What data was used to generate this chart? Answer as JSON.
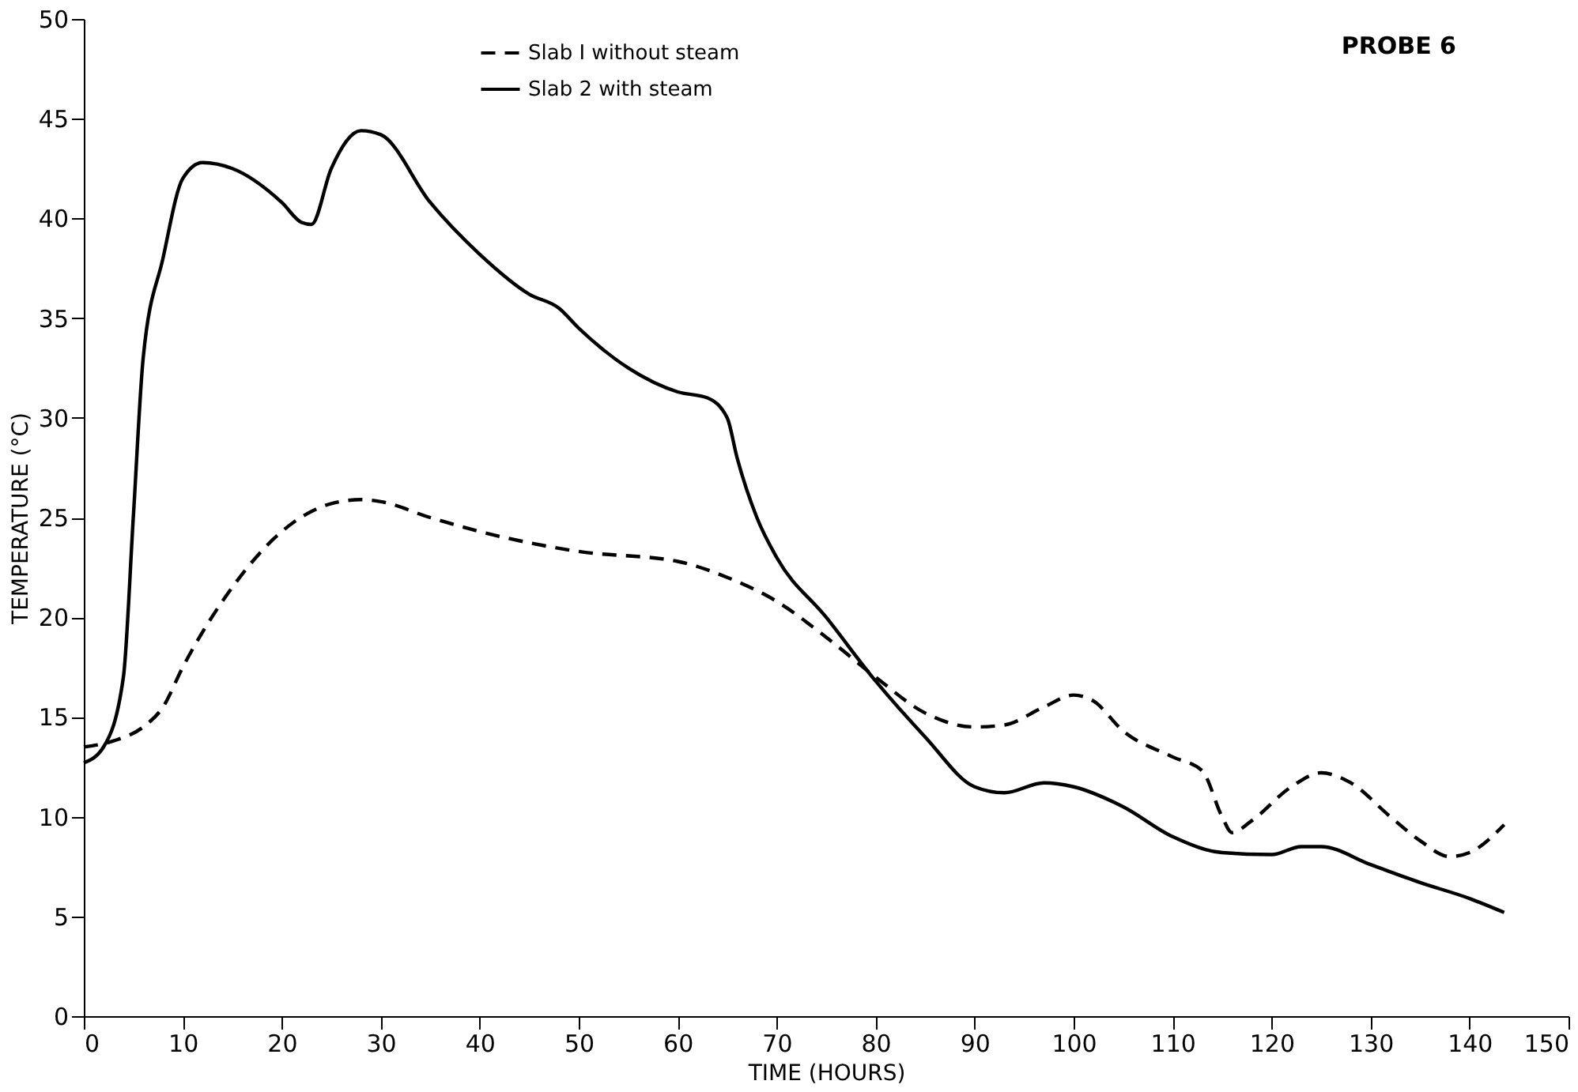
{
  "chart_data": {
    "type": "line",
    "xlabel": "TIME (HOURS)",
    "ylabel": "TEMPERATURE (°C)",
    "annotations": [
      "PROBE 6"
    ],
    "xlim": [
      0,
      150
    ],
    "xticks": [
      0,
      10,
      20,
      30,
      40,
      50,
      60,
      70,
      80,
      90,
      100,
      110,
      120,
      130,
      140,
      150
    ],
    "ylim": [
      0,
      50
    ],
    "yticks": [
      0,
      5,
      10,
      15,
      20,
      25,
      30,
      35,
      40,
      45,
      50
    ],
    "grid": false,
    "legend": "top",
    "marker": "none",
    "series": [
      {
        "name": "Slab I without steam",
        "color": "#000000",
        "line_style": "dashed",
        "x": [
          0,
          3,
          6,
          8,
          10,
          15,
          20,
          25,
          28,
          30,
          35,
          40,
          50,
          60,
          65,
          70,
          75,
          80,
          85,
          90,
          93,
          97,
          100,
          102,
          105,
          110,
          113,
          115,
          116,
          118,
          122,
          125,
          128,
          132,
          135,
          138,
          140,
          143.5
        ],
        "values": [
          13.5,
          13.8,
          14.5,
          15.5,
          17.5,
          21.5,
          24.3,
          25.7,
          25.9,
          25.8,
          25,
          24.3,
          23.3,
          22.8,
          22,
          20.8,
          19,
          17,
          15.2,
          14.5,
          14.6,
          15.5,
          16.1,
          15.8,
          14.3,
          13,
          12.3,
          10,
          9.2,
          9.8,
          11.5,
          12.2,
          11.7,
          10,
          8.8,
          8,
          8.2,
          9.6
        ]
      },
      {
        "name": "Slab 2 with steam",
        "color": "#000000",
        "line_style": "solid",
        "x": [
          0,
          2,
          4,
          5,
          6,
          8,
          10,
          12,
          15,
          20,
          22,
          23,
          25,
          28,
          30,
          35,
          40,
          45,
          48,
          50,
          55,
          60,
          63,
          65,
          66,
          68,
          70,
          75,
          80,
          85,
          90,
          93,
          97,
          100,
          105,
          110,
          115,
          120,
          123,
          125,
          130,
          135,
          140,
          143.5
        ],
        "values": [
          12.7,
          13.5,
          17,
          25,
          33,
          38,
          42,
          42.8,
          42.5,
          40.8,
          39.8,
          39.7,
          42.5,
          44.4,
          44.2,
          40.8,
          38.2,
          36.2,
          35.5,
          34.5,
          32.5,
          31.3,
          31,
          30,
          28,
          25,
          23,
          20,
          16.8,
          14,
          11.5,
          11.2,
          11.7,
          11.5,
          10.5,
          9,
          8.2,
          8.1,
          8.5,
          8.5,
          7.6,
          6.7,
          5.9,
          5.2
        ]
      }
    ]
  }
}
